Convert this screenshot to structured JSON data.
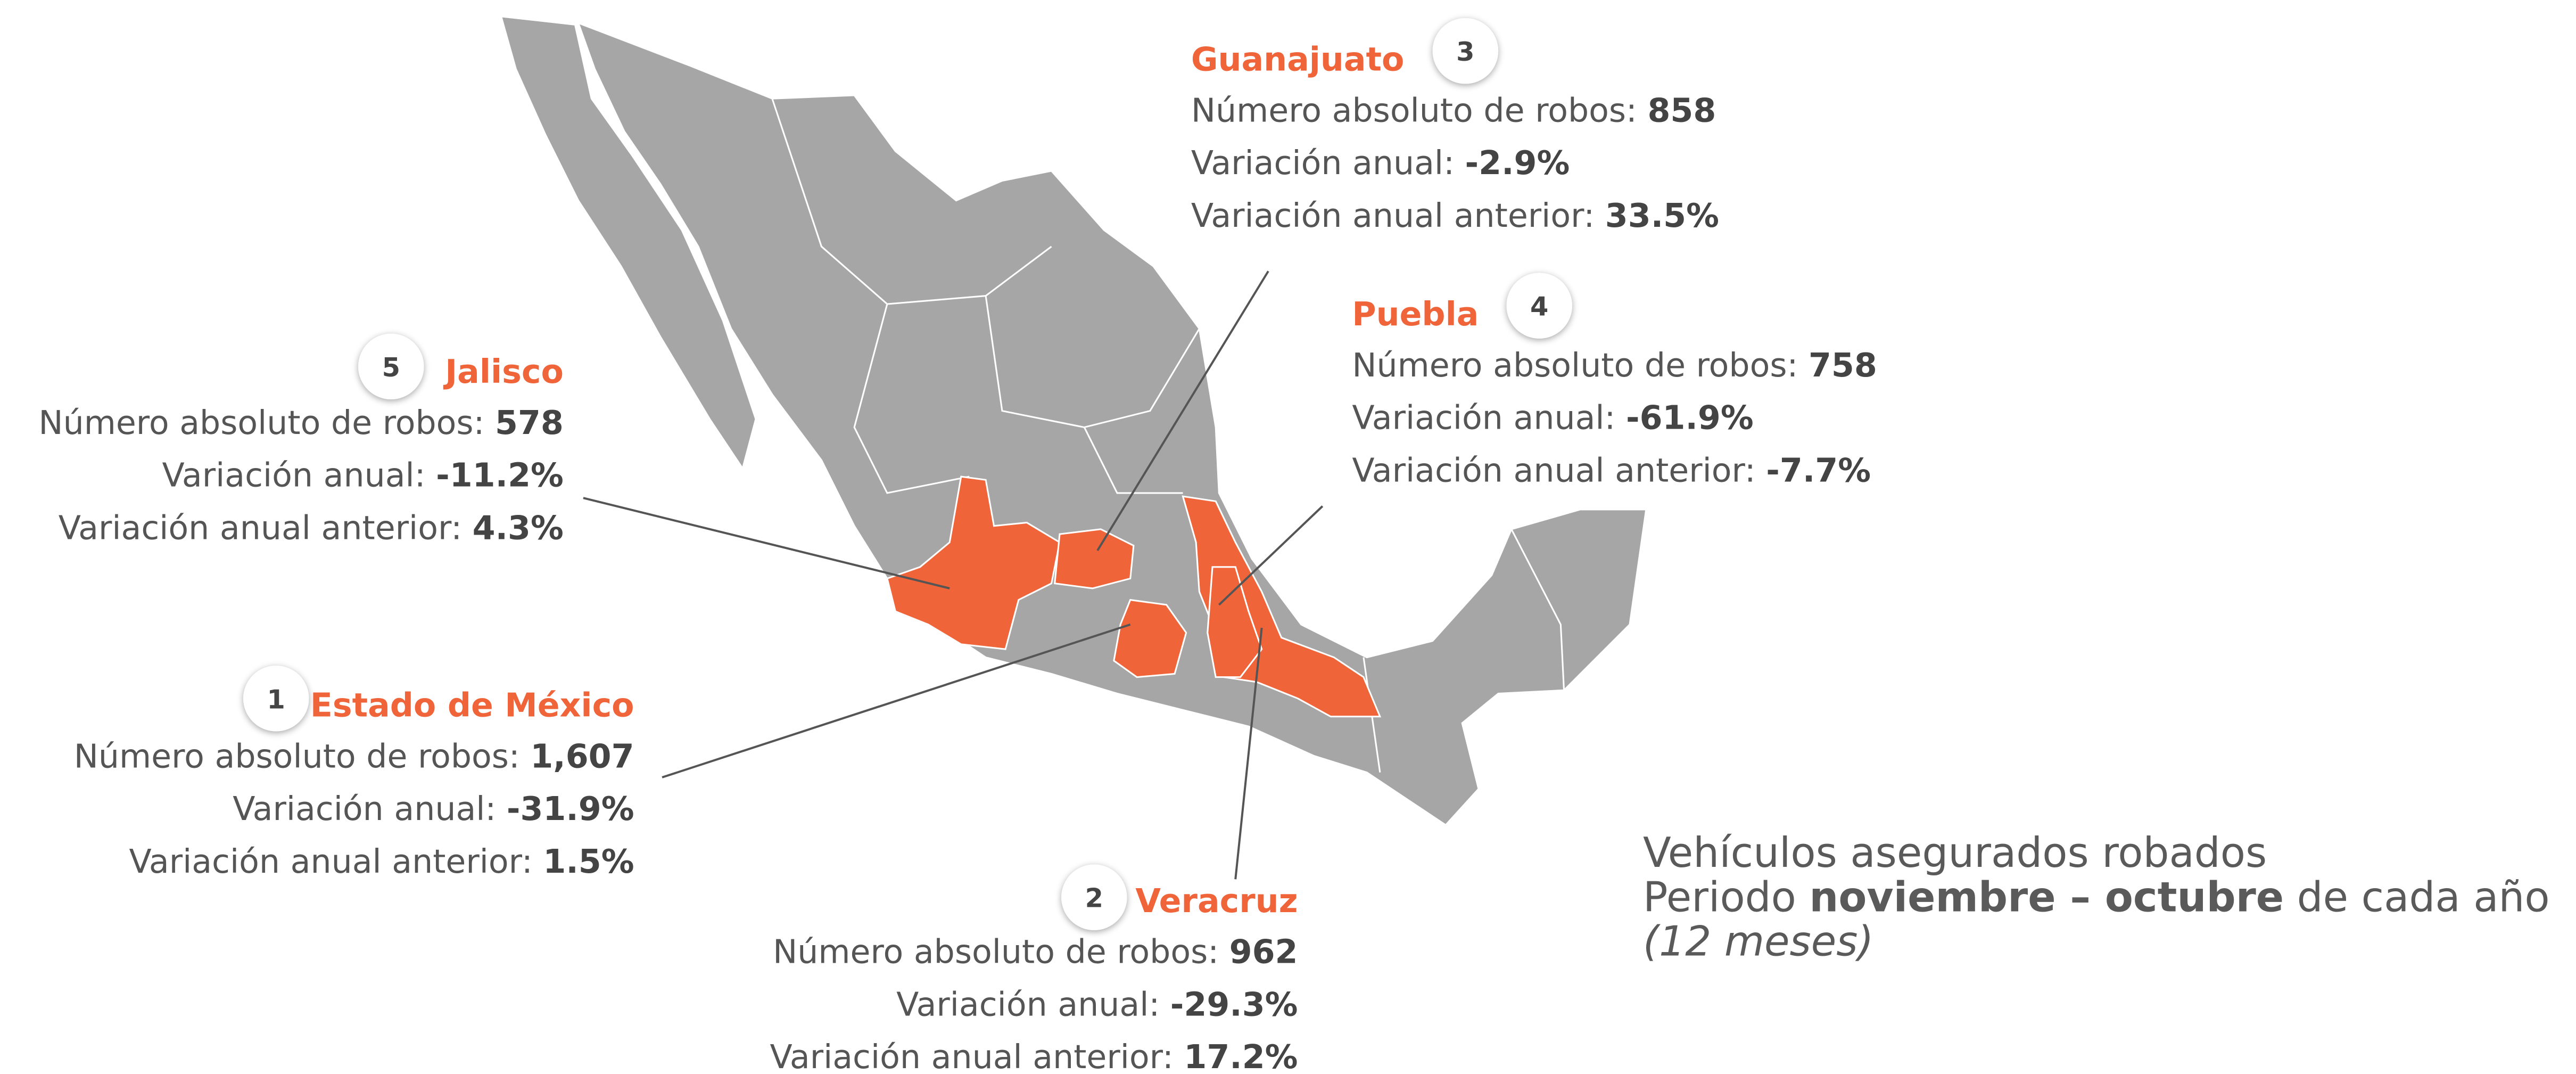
{
  "states": [
    {
      "rank": 3,
      "name": "Guanajuato",
      "rows": [
        {
          "label": "Número absoluto de robos:",
          "value": "858"
        },
        {
          "label": "Variación anual:",
          "value": "-2.9%"
        },
        {
          "label": "Variación anual anterior:",
          "value": "33.5%"
        }
      ]
    },
    {
      "rank": 4,
      "name": "Puebla",
      "rows": [
        {
          "label": "Número absoluto de robos:",
          "value": "758"
        },
        {
          "label": "Variación anual:",
          "value": "-61.9%"
        },
        {
          "label": "Variación anual anterior:",
          "value": "-7.7%"
        }
      ]
    },
    {
      "rank": 5,
      "name": "Jalisco",
      "rows": [
        {
          "label": "Número absoluto de robos:",
          "value": "578"
        },
        {
          "label": "Variación anual:",
          "value": "-11.2%"
        },
        {
          "label": "Variación anual anterior:",
          "value": "4.3%"
        }
      ]
    },
    {
      "rank": 1,
      "name": "Estado de México",
      "rows": [
        {
          "label": "Número absoluto de robos:",
          "value": "1,607"
        },
        {
          "label": "Variación anual:",
          "value": "-31.9%"
        },
        {
          "label": "Variación anual anterior:",
          "value": "1.5%"
        }
      ]
    },
    {
      "rank": 2,
      "name": "Veracruz",
      "rows": [
        {
          "label": "Número absoluto de robos:",
          "value": "962"
        },
        {
          "label": "Variación anual:",
          "value": "-29.3%"
        },
        {
          "label": "Variación anual anterior:",
          "value": "17.2%"
        }
      ]
    }
  ],
  "caption": {
    "line1": "Vehículos asegurados robados",
    "prefix": "Periodo",
    "bold": "noviembre – octubre",
    "middle": "de cada año",
    "italic": "(12 meses)"
  }
}
